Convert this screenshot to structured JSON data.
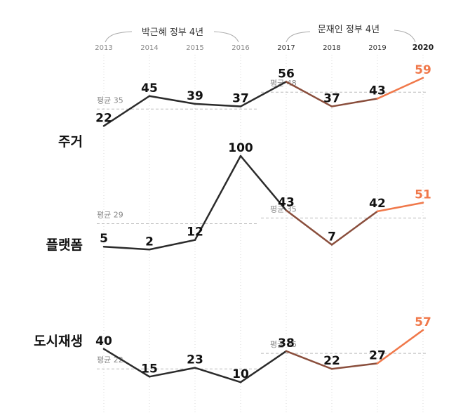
{
  "chart_data": {
    "type": "line",
    "periods": [
      {
        "label": "박근혜 정부 4년",
        "years": [
          "2013",
          "2014",
          "2015",
          "2016"
        ]
      },
      {
        "label": "문재인 정부 4년",
        "years": [
          "2017",
          "2018",
          "2019",
          "2020"
        ]
      }
    ],
    "x": [
      "2013",
      "2014",
      "2015",
      "2016",
      "2017",
      "2018",
      "2019",
      "2020"
    ],
    "colors": {
      "park": "#2b2b2b",
      "moon": "#8a4e3c",
      "latest": "#f0784a",
      "avg_line": "#bbbbbb",
      "grid": "#d8d8d8"
    },
    "series": [
      {
        "name": "주거",
        "values": [
          22,
          45,
          39,
          37,
          56,
          37,
          43,
          59
        ],
        "averages": [
          {
            "label": "평균 35",
            "value": 35
          },
          {
            "label": "평균 48",
            "value": 48
          }
        ]
      },
      {
        "name": "플랫폼",
        "values": [
          5,
          2,
          12,
          100,
          43,
          7,
          42,
          51
        ],
        "averages": [
          {
            "label": "평균 29",
            "value": 29
          },
          {
            "label": "평균 35",
            "value": 35
          }
        ]
      },
      {
        "name": "도시재생",
        "values": [
          40,
          15,
          23,
          10,
          38,
          22,
          27,
          57
        ],
        "averages": [
          {
            "label": "평균 22",
            "value": 22
          },
          {
            "label": "평균 36",
            "value": 36
          }
        ]
      }
    ]
  }
}
